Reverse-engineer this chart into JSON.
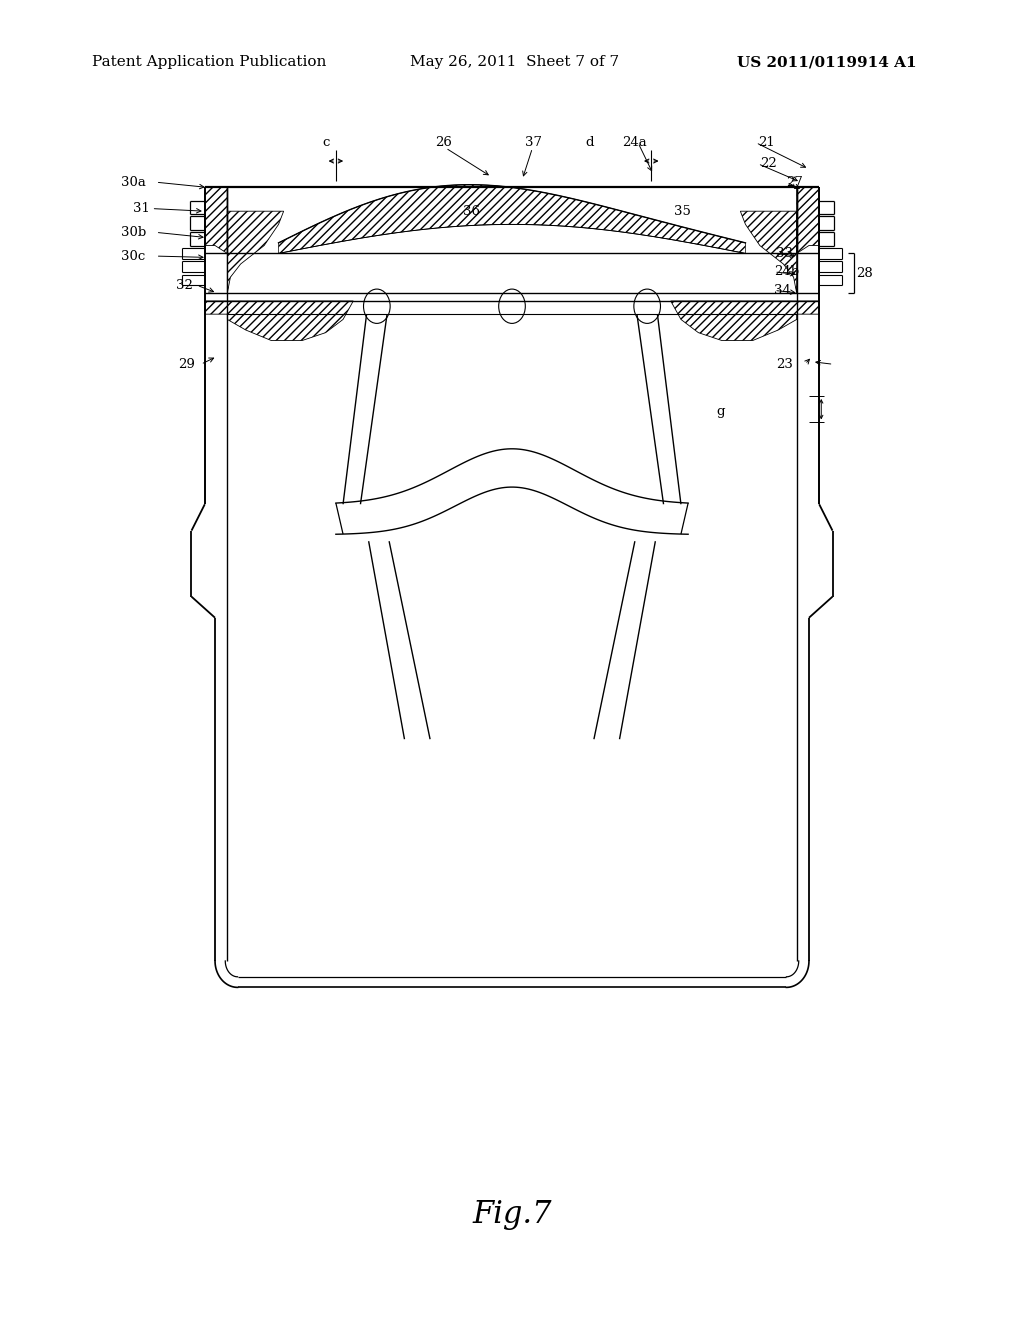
{
  "bg_color": "#ffffff",
  "line_color": "#000000",
  "header_left": "Patent Application Publication",
  "header_mid": "May 26, 2011  Sheet 7 of 7",
  "header_right": "US 2011/0119914 A1",
  "footer_label": "Fig.7",
  "header_font_size": 11,
  "footer_font_size": 22
}
